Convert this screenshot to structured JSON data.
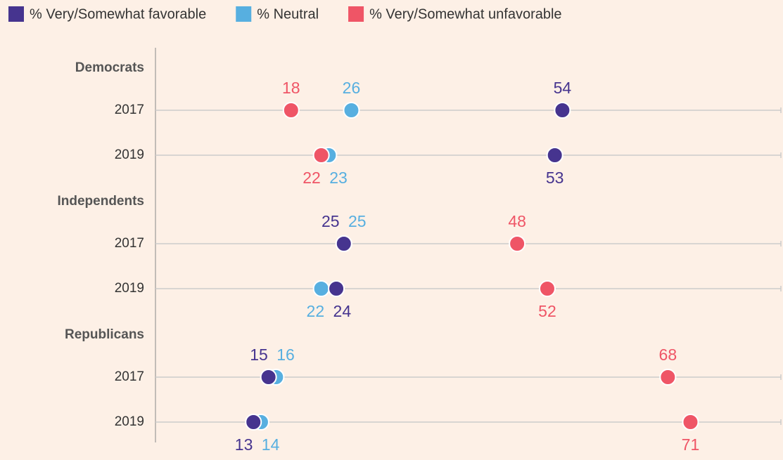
{
  "chart_data": {
    "type": "dot",
    "groups": [
      {
        "name": "Democrats",
        "categories": [
          "2017",
          "2019"
        ]
      },
      {
        "name": "Independents",
        "categories": [
          "2017",
          "2019"
        ]
      },
      {
        "name": "Republicans",
        "categories": [
          "2017",
          "2019"
        ]
      }
    ],
    "series": [
      {
        "name": "% Very/Somewhat favorable",
        "color": "#46348f",
        "values": [
          54,
          53,
          25,
          24,
          15,
          13
        ]
      },
      {
        "name": "% Neutral",
        "color": "#57afe0",
        "values": [
          26,
          23,
          25,
          22,
          16,
          14
        ]
      },
      {
        "name": "% Very/Somewhat unfavorable",
        "color": "#ef5566",
        "values": [
          18,
          22,
          48,
          52,
          68,
          71
        ]
      }
    ],
    "xlim": [
      0,
      83
    ],
    "legend": "top-left"
  }
}
